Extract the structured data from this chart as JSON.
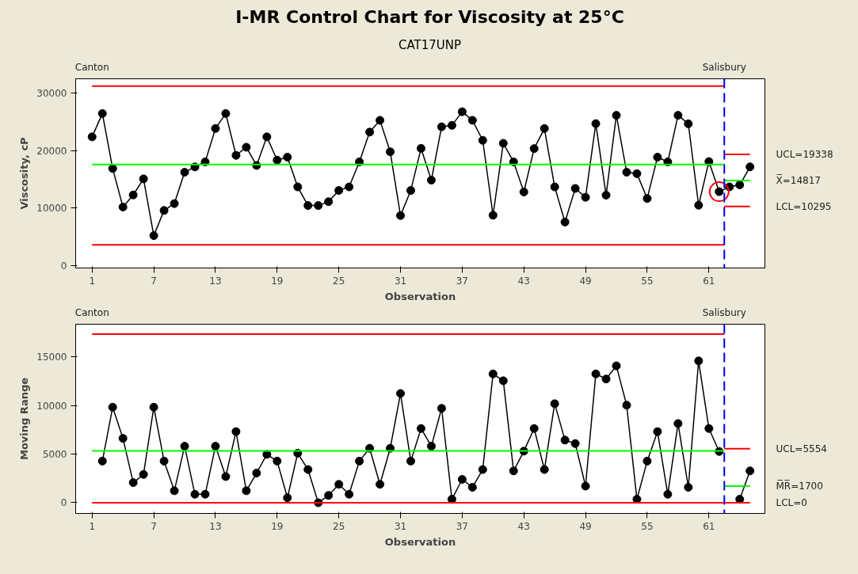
{
  "chart_data": [
    {
      "type": "line",
      "title": "I-MR Control Chart for Viscosity at 25°C",
      "subtitle": "CAT17UNP",
      "xlabel": "Observation",
      "ylabel": "Viscosity, cP",
      "x": [
        1,
        2,
        3,
        4,
        5,
        6,
        7,
        8,
        9,
        10,
        11,
        12,
        13,
        14,
        15,
        16,
        17,
        18,
        19,
        20,
        21,
        22,
        23,
        24,
        25,
        26,
        27,
        28,
        29,
        30,
        31,
        32,
        33,
        34,
        35,
        36,
        37,
        38,
        39,
        40,
        41,
        42,
        43,
        44,
        45,
        46,
        47,
        48,
        49,
        50,
        51,
        52,
        53,
        54,
        55,
        56,
        57,
        58,
        59,
        60,
        61,
        62,
        63,
        64,
        65
      ],
      "xlim": [
        -0.6,
        66.45
      ],
      "xticks": [
        1,
        7,
        13,
        19,
        25,
        31,
        37,
        43,
        49,
        55,
        61
      ],
      "ylim": [
        -400,
        32500
      ],
      "yticks": [
        0,
        10000,
        20000,
        30000
      ],
      "marker": "circle",
      "grid": false,
      "series": [
        {
          "color": "#000000",
          "values": [
            22400,
            26460,
            16900,
            10200,
            12300,
            15100,
            5230,
            9600,
            10800,
            16250,
            17180,
            18050,
            23850,
            26460,
            19180,
            20600,
            17430,
            22400,
            18360,
            18870,
            13700,
            10460,
            10460,
            11130,
            13080,
            13700,
            18050,
            23230,
            25280,
            19800,
            8720,
            13080,
            20400,
            14870,
            24150,
            24400,
            26770,
            25280,
            21800,
            8770,
            21280,
            18050,
            12820,
            20360,
            23850,
            13700,
            7590,
            13430,
            11900,
            24700,
            12260,
            26150,
            16260,
            16000,
            11690,
            18870,
            18050,
            26150,
            24670,
            10510,
            18100,
            12870,
            13700,
            14050,
            17180
          ]
        },
        {
          "type": "line",
          "marker": "none",
          "color": "#ff0000",
          "x": [
            1,
            62.5
          ],
          "values": [
            31230,
            31230
          ]
        },
        {
          "type": "line",
          "marker": "none",
          "color": "#00ff00",
          "x": [
            1,
            62.5
          ],
          "values": [
            17600,
            17600
          ]
        },
        {
          "type": "line",
          "marker": "none",
          "color": "#ff0000",
          "x": [
            1,
            62.5
          ],
          "values": [
            3640,
            3640
          ]
        },
        {
          "type": "line",
          "marker": "none",
          "color": "#ff0000",
          "x": [
            62.5,
            65
          ],
          "values": [
            19338,
            19338
          ]
        },
        {
          "type": "line",
          "marker": "none",
          "color": "#00ff00",
          "x": [
            62.5,
            65
          ],
          "values": [
            14817,
            14817
          ]
        },
        {
          "type": "line",
          "marker": "none",
          "color": "#ff0000",
          "x": [
            62.5,
            65
          ],
          "values": [
            10295,
            10295
          ]
        },
        {
          "type": "scatter",
          "color": "#ff0000",
          "x": [
            62
          ],
          "values": [
            12870
          ]
        }
      ],
      "ref_lines": [
        {
          "axis": "x",
          "value": 62.5,
          "color": "#0000ff",
          "line_style": "dashed"
        }
      ],
      "annotations": [
        "Canton",
        "Salisbury",
        "UCL=19338",
        "X̅=14817",
        "LCL=10295"
      ]
    },
    {
      "type": "line",
      "xlabel": "Observation",
      "ylabel": "Moving Range",
      "xlim": [
        -0.6,
        66.45
      ],
      "xticks": [
        1,
        7,
        13,
        19,
        25,
        31,
        37,
        43,
        49,
        55,
        61
      ],
      "ylim": [
        -1100,
        18350
      ],
      "yticks": [
        0,
        5000,
        10000,
        15000
      ],
      "marker": "circle",
      "grid": false,
      "series": [
        {
          "color": "#000000",
          "x": [
            2,
            3,
            4,
            5,
            6,
            7,
            8,
            9,
            10,
            11,
            12,
            13,
            14,
            15,
            16,
            17,
            18,
            19,
            20,
            21,
            22,
            23,
            24,
            25,
            26,
            27,
            28,
            29,
            30,
            31,
            32,
            33,
            34,
            35,
            36,
            37,
            38,
            39,
            40,
            41,
            42,
            43,
            44,
            45,
            46,
            47,
            48,
            49,
            50,
            51,
            52,
            53,
            54,
            55,
            56,
            57,
            58,
            59,
            60,
            61,
            62,
            63,
            64,
            65
          ],
          "values": [
            4280,
            9820,
            6620,
            2070,
            2910,
            9820,
            4280,
            1230,
            5810,
            870,
            870,
            5810,
            2690,
            7310,
            1230,
            3050,
            4970,
            4280,
            510,
            5090,
            3410,
            0,
            750,
            1890,
            870,
            4280,
            5600,
            1890,
            5600,
            11230,
            4280,
            7630,
            5810,
            9700,
            360,
            2400,
            1590,
            3410,
            13240,
            12540,
            3270,
            5300,
            7630,
            3410,
            10180,
            6440,
            6080,
            1710,
            13240,
            12720,
            14070,
            10030,
            360,
            4280,
            7310,
            870,
            8140,
            1590,
            14580,
            7630,
            5270,
            null,
            360,
            3270
          ]
        },
        {
          "type": "line",
          "marker": "none",
          "color": "#ff0000",
          "x": [
            1,
            62.5
          ],
          "values": [
            17330,
            17330
          ]
        },
        {
          "type": "line",
          "marker": "none",
          "color": "#00ff00",
          "x": [
            1,
            62.5
          ],
          "values": [
            5330,
            5330
          ]
        },
        {
          "type": "line",
          "marker": "none",
          "color": "#ff0000",
          "x": [
            62.5,
            65
          ],
          "values": [
            5554,
            5554
          ]
        },
        {
          "type": "line",
          "marker": "none",
          "color": "#00ff00",
          "x": [
            62.5,
            65
          ],
          "values": [
            1700,
            1700
          ]
        },
        {
          "type": "line",
          "marker": "none",
          "color": "#ff0000",
          "x": [
            1,
            65
          ],
          "values": [
            0,
            0
          ]
        }
      ],
      "ref_lines": [
        {
          "axis": "x",
          "value": 62.5,
          "color": "#0000ff",
          "line_style": "dashed"
        }
      ],
      "annotations": [
        "Canton",
        "Salisbury",
        "UCL=5554",
        "M̅R̅=1700",
        "LCL=0"
      ]
    }
  ]
}
